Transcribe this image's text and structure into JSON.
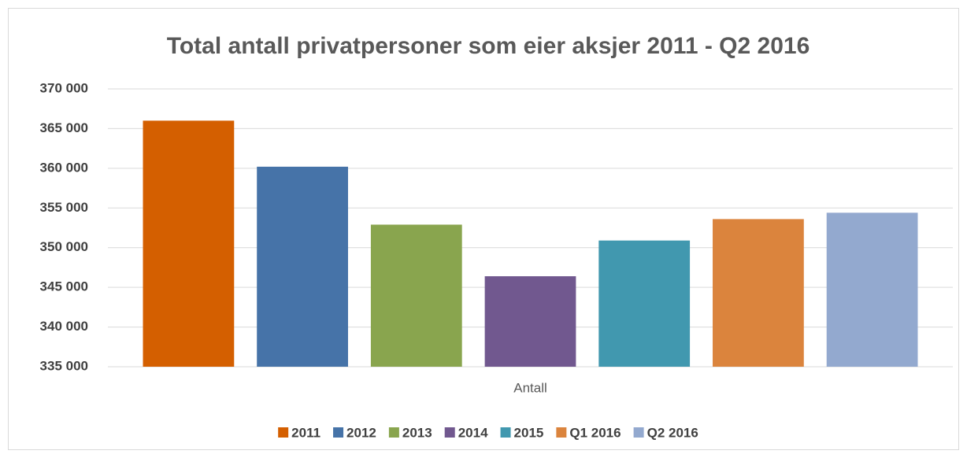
{
  "chart_data": {
    "type": "bar",
    "title": "Total antall privatpersoner som eier aksjer 2011 - Q2 2016",
    "categories": [
      "Antall"
    ],
    "series": [
      {
        "name": "2011",
        "color": "#d45f00",
        "values": [
          366000
        ]
      },
      {
        "name": "2012",
        "color": "#4673a8",
        "values": [
          360200
        ]
      },
      {
        "name": "2013",
        "color": "#89a54e",
        "values": [
          352900
        ]
      },
      {
        "name": "2014",
        "color": "#71588f",
        "values": [
          346400
        ]
      },
      {
        "name": "2015",
        "color": "#4198af",
        "values": [
          350900
        ]
      },
      {
        "name": "Q1 2016",
        "color": "#db843d",
        "values": [
          353600
        ]
      },
      {
        "name": "Q2 2016",
        "color": "#93a9cf",
        "values": [
          354400
        ]
      }
    ],
    "ylim": [
      335000,
      370000
    ],
    "yticks": [
      {
        "value": 335000,
        "label": "335 000"
      },
      {
        "value": 340000,
        "label": "340 000"
      },
      {
        "value": 345000,
        "label": "345 000"
      },
      {
        "value": 350000,
        "label": "350 000"
      },
      {
        "value": 355000,
        "label": "355 000"
      },
      {
        "value": 360000,
        "label": "360 000"
      },
      {
        "value": 365000,
        "label": "365 000"
      },
      {
        "value": 370000,
        "label": "370 000"
      }
    ],
    "grid": true,
    "legend": "bottom"
  }
}
